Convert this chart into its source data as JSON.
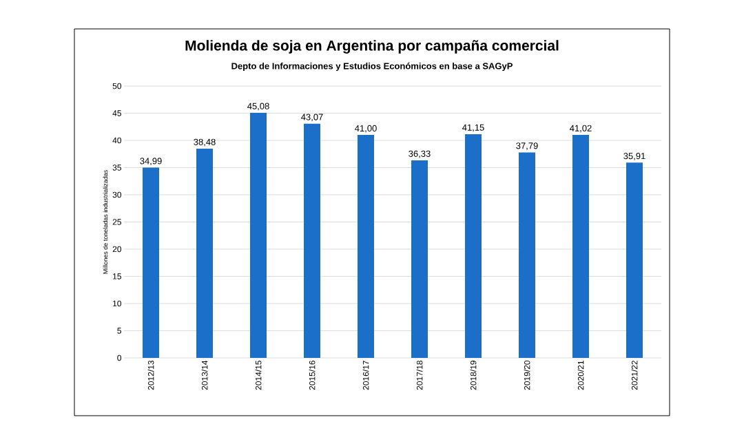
{
  "chart_data": {
    "type": "bar",
    "title": "Molienda de soja en Argentina por campaña comercial",
    "subtitle": "Depto de Informaciones y Estudios Económicos en base a SAGyP",
    "ylabel": "Millones de toneladas industrializadas",
    "categories": [
      "2012/13",
      "2013/14",
      "2014/15",
      "2015/16",
      "2016/17",
      "2017/18",
      "2018/19",
      "2019/20",
      "2020/21",
      "2021/22"
    ],
    "values": [
      34.99,
      38.48,
      45.08,
      43.07,
      41.0,
      36.33,
      41.15,
      37.79,
      41.02,
      35.91
    ],
    "value_labels": [
      "34,99",
      "38,48",
      "45,08",
      "43,07",
      "41,00",
      "36,33",
      "41,15",
      "37,79",
      "41,02",
      "35,91"
    ],
    "color": "#1b6fc8",
    "ylim": [
      0,
      50
    ],
    "yticks": [
      0,
      5,
      10,
      15,
      20,
      25,
      30,
      35,
      40,
      45,
      50
    ],
    "grid": "y"
  }
}
